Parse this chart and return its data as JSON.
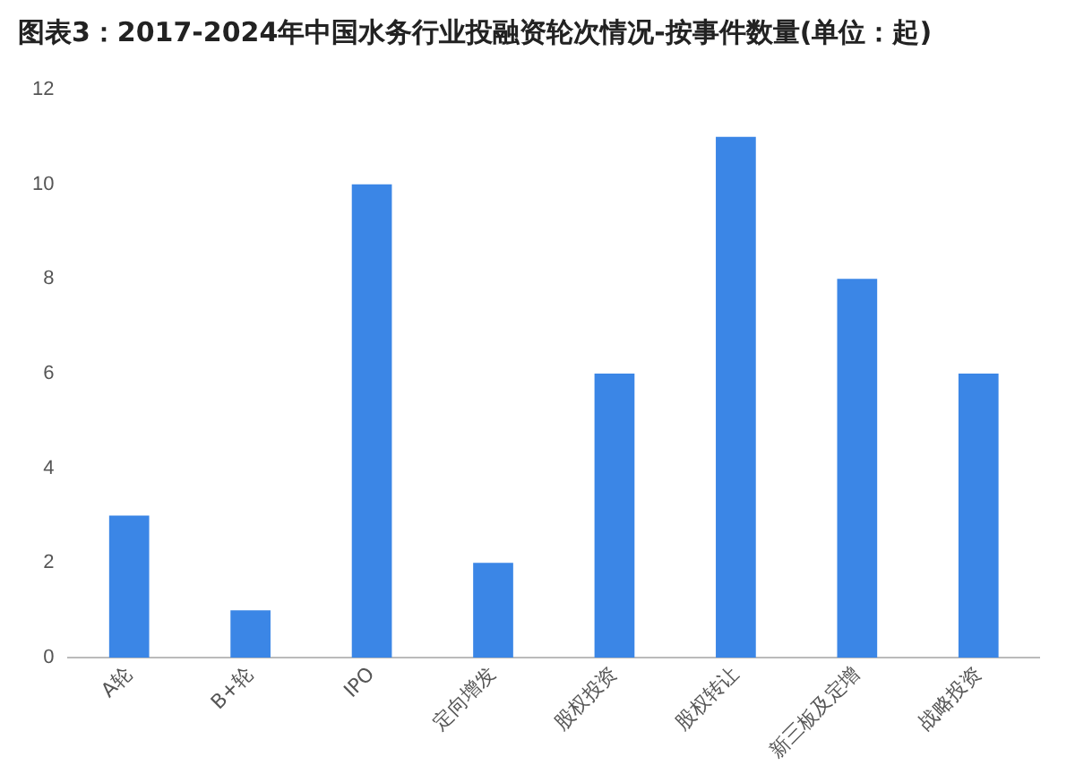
{
  "chart_data": {
    "type": "bar",
    "title": "图表3：2017-2024年中国水务行业投融资轮次情况-按事件数量(单位：起)",
    "categories": [
      "A轮",
      "B+轮",
      "IPO",
      "定向增发",
      "股权投资",
      "股权转让",
      "新三板及定增",
      "战略投资"
    ],
    "values": [
      3,
      1,
      10,
      2,
      6,
      11,
      8,
      6
    ],
    "color": "#3b86e6",
    "ylim": [
      0,
      12
    ],
    "yticks": [
      0,
      2,
      4,
      6,
      8,
      10,
      12
    ],
    "grid": false
  }
}
